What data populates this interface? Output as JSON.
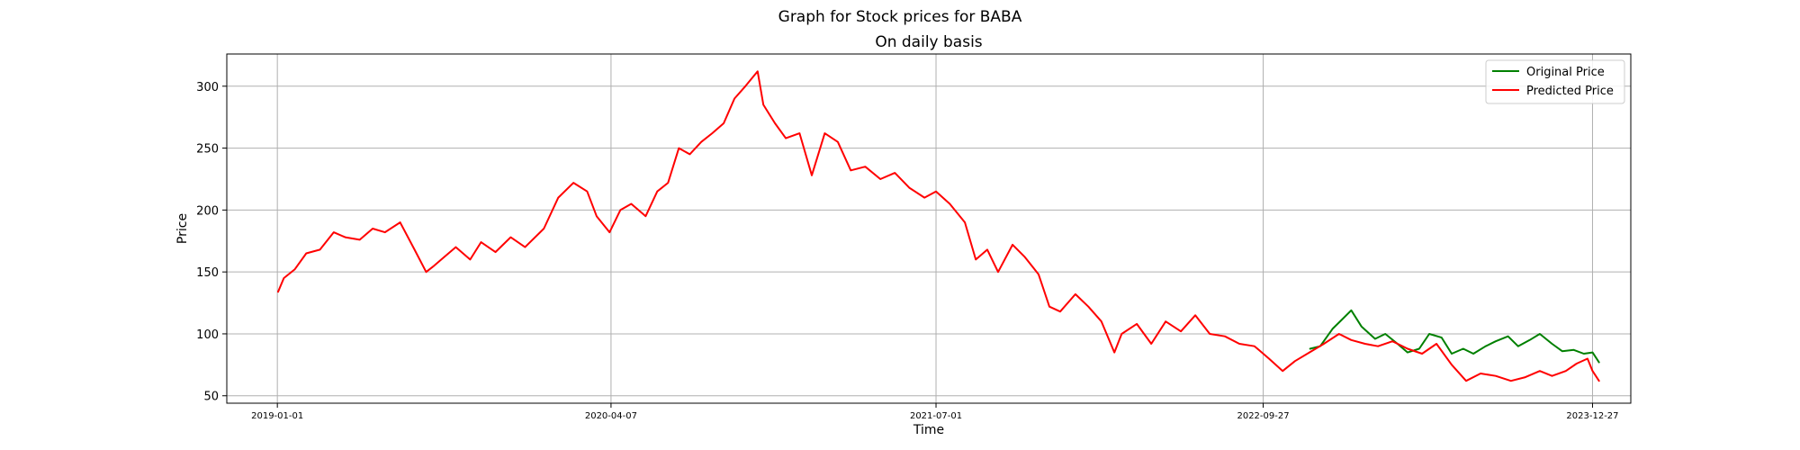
{
  "chart_data": {
    "type": "line",
    "suptitle": "Graph for Stock prices for BABA",
    "title": "On daily basis",
    "xlabel": "Time",
    "ylabel": "Price",
    "xlim": [
      "2018-10-23",
      "2024-02-18"
    ],
    "ylim": [
      44,
      326
    ],
    "x_ticks": [
      "2019-01-01",
      "2020-04-07",
      "2021-07-01",
      "2022-09-27",
      "2023-12-27"
    ],
    "y_ticks": [
      50,
      100,
      150,
      200,
      250,
      300
    ],
    "grid": true,
    "legend_position": "top-right",
    "series": [
      {
        "name": "Original Price",
        "color": "#008000",
        "x": [
          "2022-12-01",
          "2022-12-15",
          "2023-01-01",
          "2023-01-15",
          "2023-01-27",
          "2023-02-10",
          "2023-03-01",
          "2023-03-15",
          "2023-04-01",
          "2023-04-15",
          "2023-05-01",
          "2023-05-15",
          "2023-06-01",
          "2023-06-15",
          "2023-07-01",
          "2023-07-15",
          "2023-08-01",
          "2023-08-15",
          "2023-09-01",
          "2023-09-15",
          "2023-10-01",
          "2023-10-15",
          "2023-11-01",
          "2023-11-15",
          "2023-12-01",
          "2023-12-15",
          "2023-12-27",
          "2024-01-05"
        ],
        "y": [
          88,
          90,
          104,
          112,
          119,
          106,
          96,
          100,
          92,
          85,
          88,
          100,
          97,
          84,
          88,
          84,
          90,
          94,
          98,
          90,
          95,
          100,
          92,
          86,
          87,
          84,
          85,
          77
        ]
      },
      {
        "name": "Predicted Price",
        "color": "#ff0000",
        "x": [
          "2019-01-02",
          "2019-01-10",
          "2019-01-25",
          "2019-02-10",
          "2019-03-01",
          "2019-03-20",
          "2019-04-05",
          "2019-04-25",
          "2019-05-13",
          "2019-05-30",
          "2019-06-20",
          "2019-07-10",
          "2019-07-26",
          "2019-08-06",
          "2019-08-20",
          "2019-09-05",
          "2019-09-25",
          "2019-10-10",
          "2019-10-30",
          "2019-11-20",
          "2019-12-10",
          "2020-01-05",
          "2020-01-25",
          "2020-02-15",
          "2020-03-05",
          "2020-03-18",
          "2020-04-05",
          "2020-04-20",
          "2020-05-05",
          "2020-05-25",
          "2020-06-10",
          "2020-06-25",
          "2020-07-10",
          "2020-07-25",
          "2020-08-10",
          "2020-08-25",
          "2020-09-10",
          "2020-09-25",
          "2020-10-10",
          "2020-10-27",
          "2020-11-04",
          "2020-11-20",
          "2020-12-05",
          "2020-12-24",
          "2021-01-10",
          "2021-01-28",
          "2021-02-15",
          "2021-03-05",
          "2021-03-25",
          "2021-04-15",
          "2021-05-05",
          "2021-05-25",
          "2021-06-15",
          "2021-07-01",
          "2021-07-20",
          "2021-08-10",
          "2021-08-25",
          "2021-09-10",
          "2021-09-25",
          "2021-10-15",
          "2021-11-01",
          "2021-11-20",
          "2021-12-05",
          "2021-12-20",
          "2022-01-10",
          "2022-01-28",
          "2022-02-15",
          "2022-03-05",
          "2022-03-15",
          "2022-04-05",
          "2022-04-25",
          "2022-05-15",
          "2022-06-05",
          "2022-06-25",
          "2022-07-15",
          "2022-08-05",
          "2022-08-25",
          "2022-09-15",
          "2022-10-05",
          "2022-10-24",
          "2022-11-10",
          "2022-11-30",
          "2022-12-20",
          "2023-01-10",
          "2023-01-27",
          "2023-02-15",
          "2023-03-05",
          "2023-03-25",
          "2023-04-15",
          "2023-05-05",
          "2023-05-25",
          "2023-06-15",
          "2023-07-05",
          "2023-07-25",
          "2023-08-15",
          "2023-09-05",
          "2023-09-25",
          "2023-10-15",
          "2023-11-01",
          "2023-11-20",
          "2023-12-05",
          "2023-12-20",
          "2023-12-27",
          "2024-01-05"
        ],
        "y": [
          134,
          145,
          152,
          165,
          168,
          182,
          178,
          176,
          185,
          182,
          190,
          168,
          150,
          155,
          162,
          170,
          160,
          174,
          166,
          178,
          170,
          185,
          210,
          222,
          215,
          195,
          182,
          200,
          205,
          195,
          215,
          222,
          250,
          245,
          255,
          262,
          270,
          290,
          300,
          312,
          285,
          270,
          258,
          262,
          228,
          262,
          255,
          232,
          235,
          225,
          230,
          218,
          210,
          215,
          205,
          190,
          160,
          168,
          150,
          172,
          162,
          148,
          122,
          118,
          132,
          122,
          110,
          85,
          100,
          108,
          92,
          110,
          102,
          115,
          100,
          98,
          92,
          90,
          80,
          70,
          78,
          85,
          92,
          100,
          95,
          92,
          90,
          94,
          88,
          84,
          92,
          75,
          62,
          68,
          66,
          62,
          65,
          70,
          66,
          70,
          76,
          80,
          70,
          62
        ]
      }
    ]
  }
}
